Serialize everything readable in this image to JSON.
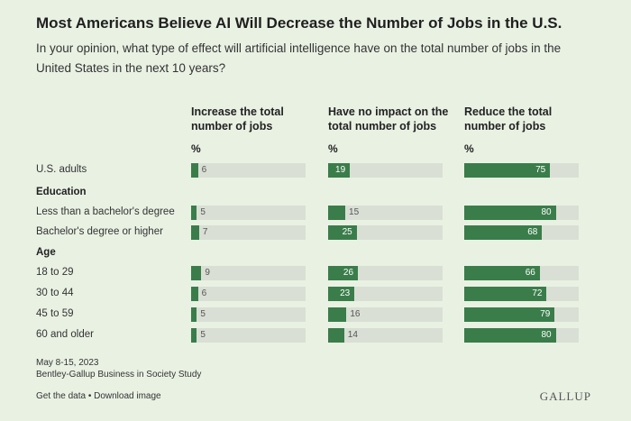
{
  "header": {
    "title": "Most Americans Believe AI Will Decrease the Number of Jobs in the U.S.",
    "subtitle": "In your opinion, what type of effect will artificial intelligence have on the total number of jobs in the United States in the next 10 years?"
  },
  "chart_data": {
    "type": "bar",
    "title": "Most Americans Believe AI Will Decrease the Number of Jobs in the U.S.",
    "unit_label": "%",
    "xlim": [
      0,
      100
    ],
    "series": [
      {
        "name": "Increase the total number of jobs",
        "values": [
          6,
          5,
          7,
          9,
          6,
          5,
          5
        ]
      },
      {
        "name": "Have no impact on the total number of jobs",
        "values": [
          19,
          15,
          25,
          26,
          23,
          16,
          14
        ]
      },
      {
        "name": "Reduce the total number of jobs",
        "values": [
          75,
          80,
          68,
          66,
          72,
          79,
          80
        ]
      }
    ],
    "rows": [
      {
        "group": "",
        "label": "U.S. adults",
        "values": [
          6,
          19,
          75
        ]
      },
      {
        "group": "Education",
        "label": "Less than a bachelor's degree",
        "values": [
          5,
          15,
          80
        ]
      },
      {
        "group": "Education",
        "label": "Bachelor's degree or higher",
        "values": [
          7,
          25,
          68
        ]
      },
      {
        "group": "Age",
        "label": "18 to 29",
        "values": [
          9,
          26,
          66
        ]
      },
      {
        "group": "Age",
        "label": "30 to 44",
        "values": [
          6,
          23,
          72
        ]
      },
      {
        "group": "Age",
        "label": "45 to 59",
        "values": [
          5,
          16,
          79
        ]
      },
      {
        "group": "Age",
        "label": "60 and older",
        "values": [
          5,
          14,
          80
        ]
      }
    ],
    "groups": [
      "Education",
      "Age"
    ],
    "colors": {
      "bar": "#3a7d4a",
      "track": "#d9dfd4",
      "background": "#e9f1e3"
    }
  },
  "footer": {
    "date": "May 8-15, 2023",
    "study": "Bentley-Gallup Business in Society Study",
    "get_data": "Get the data",
    "separator": " • ",
    "download": "Download image",
    "logo": "GALLUP"
  }
}
